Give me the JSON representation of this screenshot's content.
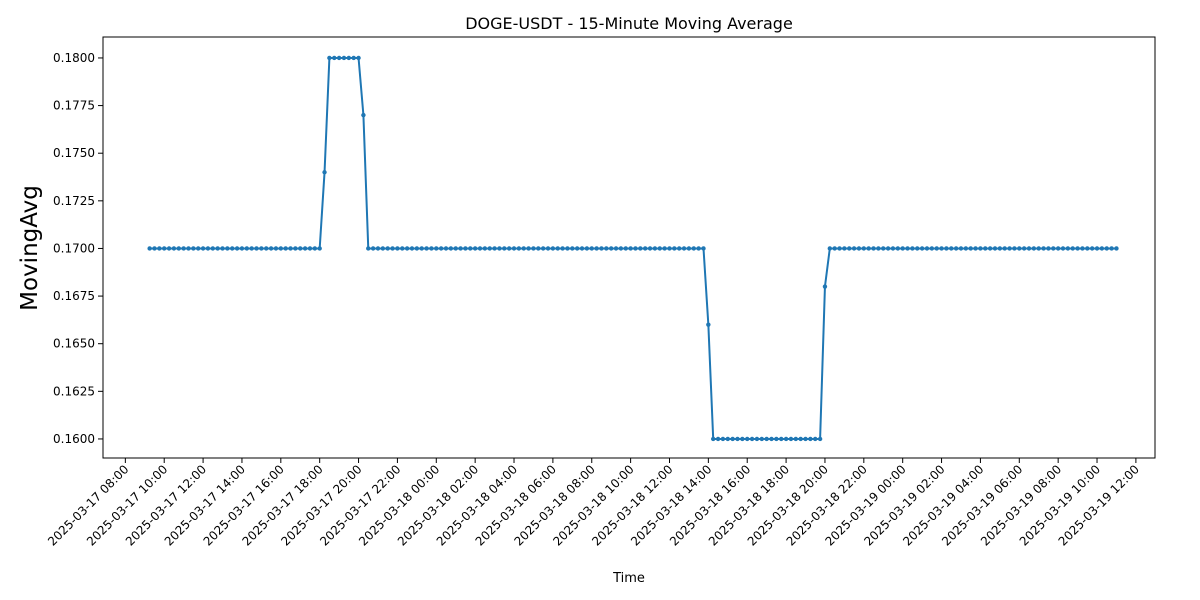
{
  "chart_data": {
    "type": "line",
    "title": "DOGE-USDT - 15-Minute Moving Average",
    "xlabel": "Time",
    "ylabel": "MovingAvg",
    "ylim": [
      0.159,
      0.1811
    ],
    "xlim": [
      "2025-03-17 06:51",
      "2025-03-19 12:59"
    ],
    "grid": false,
    "legend": "none",
    "x_tick_labels": [
      "2025-03-17 08:00",
      "2025-03-17 10:00",
      "2025-03-17 12:00",
      "2025-03-17 14:00",
      "2025-03-17 16:00",
      "2025-03-17 18:00",
      "2025-03-17 20:00",
      "2025-03-17 22:00",
      "2025-03-18 00:00",
      "2025-03-18 02:00",
      "2025-03-18 04:00",
      "2025-03-18 06:00",
      "2025-03-18 08:00",
      "2025-03-18 10:00",
      "2025-03-18 12:00",
      "2025-03-18 14:00",
      "2025-03-18 16:00",
      "2025-03-18 18:00",
      "2025-03-18 20:00",
      "2025-03-18 22:00",
      "2025-03-19 00:00",
      "2025-03-19 02:00",
      "2025-03-19 04:00",
      "2025-03-19 06:00",
      "2025-03-19 08:00",
      "2025-03-19 10:00",
      "2025-03-19 12:00"
    ],
    "y_tick_labels": [
      "0.1600",
      "0.1625",
      "0.1650",
      "0.1675",
      "0.1700",
      "0.1725",
      "0.1750",
      "0.1775",
      "0.1800"
    ],
    "series": [
      {
        "color": "#1f77b4",
        "marker": "circle",
        "segments": [
          {
            "start": "2025-03-17 09:15",
            "end": "2025-03-17 18:00",
            "step_minutes": 15,
            "value": 0.17
          },
          {
            "x": "2025-03-17 18:15",
            "y": 0.174
          },
          {
            "start": "2025-03-17 18:30",
            "end": "2025-03-17 20:00",
            "step_minutes": 15,
            "value": 0.18
          },
          {
            "x": "2025-03-17 20:15",
            "y": 0.177
          },
          {
            "start": "2025-03-17 20:30",
            "end": "2025-03-18 13:45",
            "step_minutes": 15,
            "value": 0.17
          },
          {
            "x": "2025-03-18 14:00",
            "y": 0.166
          },
          {
            "start": "2025-03-18 14:15",
            "end": "2025-03-18 19:45",
            "step_minutes": 15,
            "value": 0.16
          },
          {
            "x": "2025-03-18 20:00",
            "y": 0.168
          },
          {
            "start": "2025-03-18 20:15",
            "end": "2025-03-19 11:00",
            "step_minutes": 15,
            "value": 0.17
          }
        ]
      }
    ]
  }
}
